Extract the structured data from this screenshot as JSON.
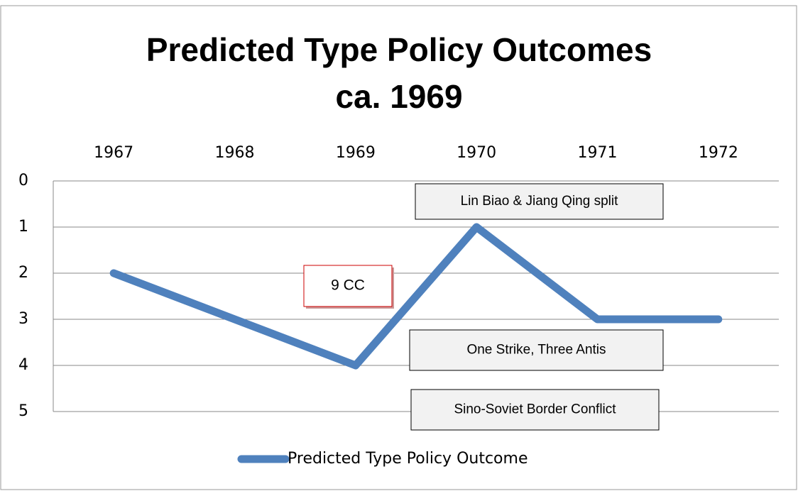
{
  "chart_data": {
    "type": "line",
    "title": "Predicted Type Policy Outcomes",
    "subtitle": "ca. 1969",
    "categories": [
      "1967",
      "1968",
      "1969",
      "1970",
      "1971",
      "1972"
    ],
    "series": [
      {
        "name": "Predicted Type Policy Outcome",
        "color": "#4f81bd",
        "values": [
          2,
          3,
          4,
          1,
          3,
          3
        ]
      }
    ],
    "ylim": [
      0,
      5
    ],
    "yticks": [
      0,
      1,
      2,
      3,
      4,
      5
    ],
    "y_reversed": true,
    "grid": true,
    "legend": "bottom",
    "annotations": [
      "Lin Biao & Jiang Qing split",
      "9 CC",
      "One Strike, Three Antis",
      "Sino-Soviet Border Conflict"
    ]
  }
}
